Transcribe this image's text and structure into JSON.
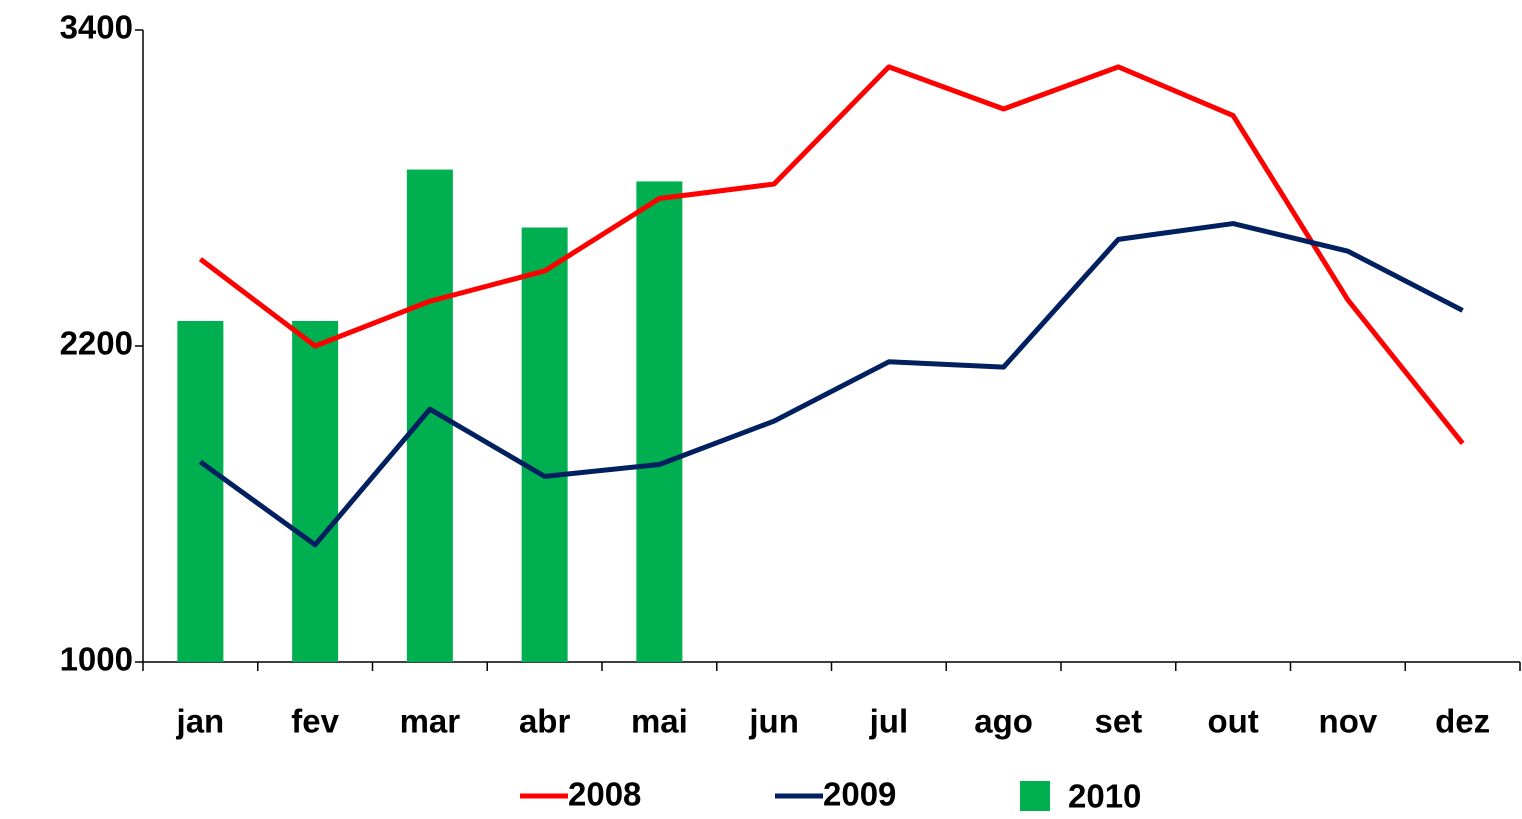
{
  "chart_data": {
    "type": "combo",
    "categories": [
      "jan",
      "fev",
      "mar",
      "abr",
      "mai",
      "jun",
      "jul",
      "ago",
      "set",
      "out",
      "nov",
      "dez"
    ],
    "series": [
      {
        "name": "2010",
        "type": "bar",
        "color": "#00b050",
        "values": [
          2295,
          2295,
          2870,
          2650,
          2825,
          null,
          null,
          null,
          null,
          null,
          null,
          null
        ]
      },
      {
        "name": "2008",
        "type": "line",
        "color": "#ff0000",
        "values": [
          2530,
          2200,
          2370,
          2485,
          2760,
          2815,
          3260,
          3100,
          3260,
          3075,
          2375,
          1830
        ]
      },
      {
        "name": "2009",
        "type": "line",
        "color": "#002060",
        "values": [
          1760,
          1445,
          1960,
          1705,
          1750,
          1915,
          2140,
          2120,
          2605,
          2665,
          2560,
          2335
        ]
      }
    ],
    "ylim": [
      1000,
      3400
    ],
    "yticks": [
      1000,
      2200,
      3400
    ],
    "grid": false
  }
}
